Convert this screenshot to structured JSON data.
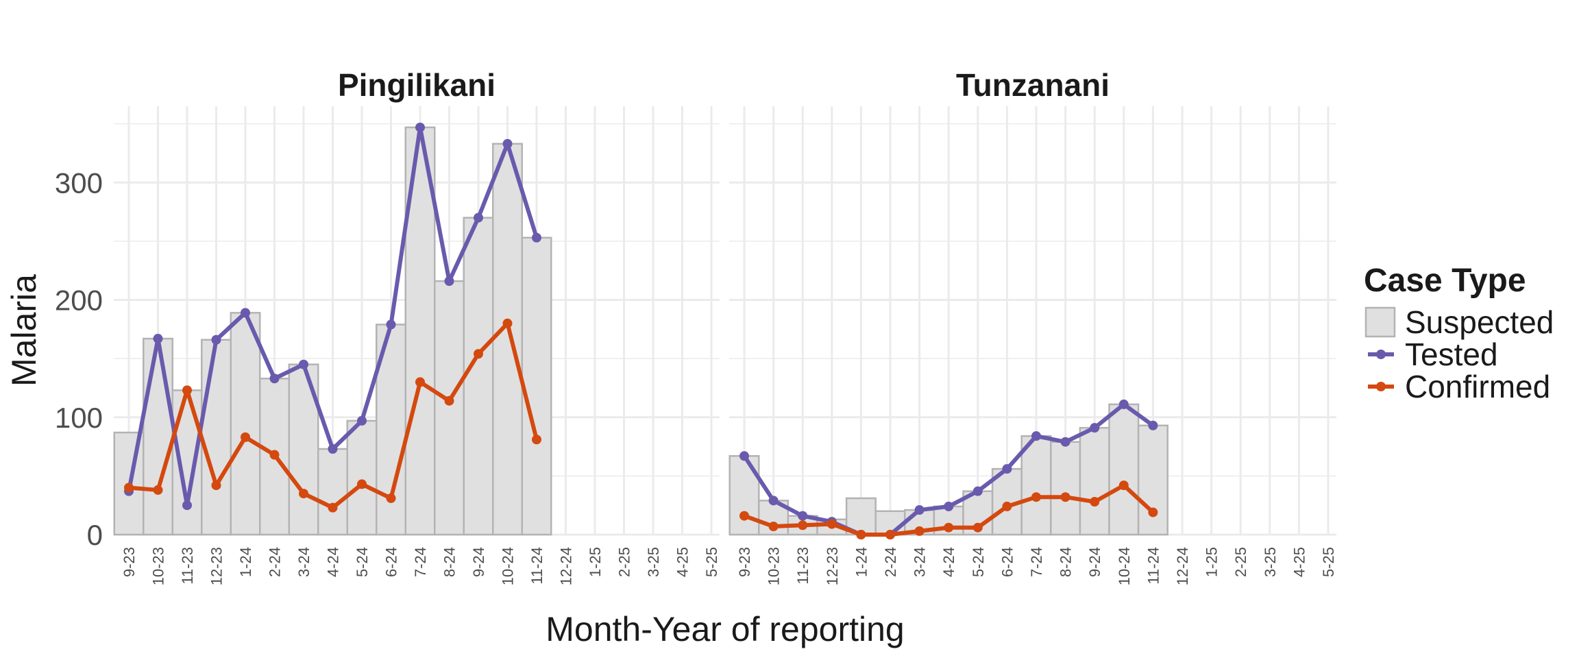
{
  "chart_data": {
    "type": "bar+line",
    "xlabel": "Month-Year of reporting",
    "ylabel": "Malaria",
    "ylim": [
      0,
      365
    ],
    "yticks": [
      0,
      100,
      200,
      300
    ],
    "grid": true,
    "legend": {
      "title": "Case Type",
      "placement": "right",
      "entries": [
        {
          "name": "Suspected",
          "kind": "bar",
          "color": "#e0e0e0"
        },
        {
          "name": "Tested",
          "kind": "line",
          "color": "#6a5aad"
        },
        {
          "name": "Confirmed",
          "kind": "line",
          "color": "#d4490f"
        }
      ]
    },
    "categories": [
      "9-23",
      "10-23",
      "11-23",
      "12-23",
      "1-24",
      "2-24",
      "3-24",
      "4-24",
      "5-24",
      "6-24",
      "7-24",
      "8-24",
      "9-24",
      "10-24",
      "11-24",
      "12-24",
      "1-25",
      "2-25",
      "3-25",
      "4-25",
      "5-25"
    ],
    "colors": {
      "bar_fill": "#e0e0e0",
      "bar_stroke": "#b3b3b3",
      "tested": "#6a5aad",
      "confirmed": "#d4490f",
      "grid": "#ebebeb"
    },
    "panels": [
      {
        "title": "Pingilikani",
        "series": [
          {
            "name": "Suspected",
            "values": [
              87,
              167,
              123,
              166,
              189,
              133,
              145,
              73,
              97,
              179,
              347,
              216,
              270,
              333,
              253,
              null,
              null,
              null,
              null,
              null,
              null
            ]
          },
          {
            "name": "Tested",
            "values": [
              37,
              167,
              25,
              166,
              189,
              133,
              145,
              73,
              97,
              179,
              347,
              216,
              270,
              333,
              253,
              null,
              null,
              null,
              null,
              null,
              null
            ]
          },
          {
            "name": "Confirmed",
            "values": [
              40,
              38,
              123,
              42,
              83,
              68,
              35,
              23,
              43,
              31,
              130,
              114,
              154,
              180,
              81,
              null,
              null,
              null,
              null,
              null,
              null
            ]
          }
        ]
      },
      {
        "title": "Tunzanani",
        "series": [
          {
            "name": "Suspected",
            "values": [
              67,
              29,
              16,
              13,
              31,
              20,
              21,
              24,
              37,
              56,
              84,
              79,
              91,
              111,
              93,
              null,
              null,
              null,
              null,
              null,
              null
            ]
          },
          {
            "name": "Tested",
            "values": [
              67,
              29,
              16,
              11,
              0,
              0,
              21,
              24,
              37,
              56,
              84,
              79,
              91,
              111,
              93,
              null,
              null,
              null,
              null,
              null,
              null
            ]
          },
          {
            "name": "Confirmed",
            "values": [
              16,
              7,
              8,
              9,
              0,
              0,
              3,
              6,
              6,
              24,
              32,
              32,
              28,
              42,
              19,
              null,
              null,
              null,
              null,
              null,
              null
            ]
          }
        ]
      }
    ]
  }
}
